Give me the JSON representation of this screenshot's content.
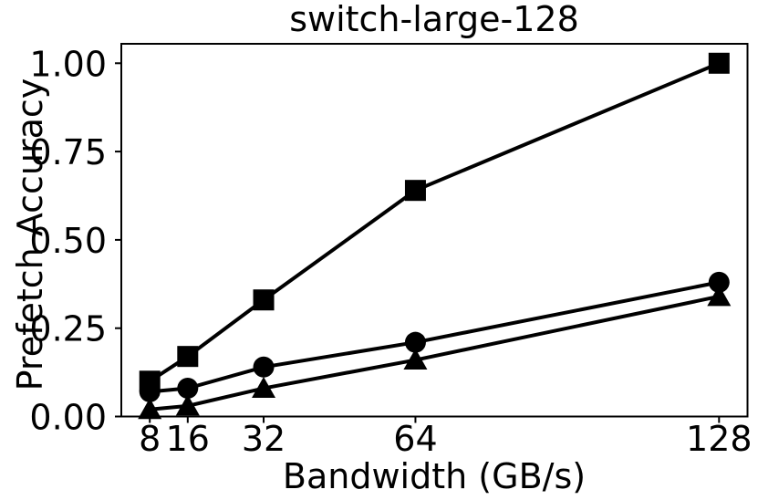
{
  "chart_data": {
    "type": "line",
    "title": "switch-large-128",
    "xlabel": "Bandwidth (GB/s)",
    "ylabel": "Prefetch Accuracy",
    "x": [
      8,
      16,
      32,
      64,
      128
    ],
    "x_tick_labels": [
      "8",
      "16",
      "32",
      "64",
      "128"
    ],
    "y_ticks": [
      0.0,
      0.25,
      0.5,
      0.75,
      1.0
    ],
    "y_tick_labels": [
      "0.00",
      "0.25",
      "0.50",
      "0.75",
      "1.00"
    ],
    "xlim": [
      2,
      134
    ],
    "ylim": [
      0,
      1.055
    ],
    "x_scale": "linear",
    "grid": false,
    "legend": "none",
    "background_color": "#ffffff",
    "line_color": "#000000",
    "series": [
      {
        "name": "square-marker-series",
        "marker": "square",
        "values": [
          0.1,
          0.17,
          0.33,
          0.64,
          1.0
        ]
      },
      {
        "name": "circle-marker-series",
        "marker": "circle",
        "values": [
          0.07,
          0.08,
          0.14,
          0.21,
          0.38
        ]
      },
      {
        "name": "triangle-marker-series",
        "marker": "triangle",
        "values": [
          0.02,
          0.03,
          0.08,
          0.16,
          0.34
        ]
      }
    ]
  }
}
